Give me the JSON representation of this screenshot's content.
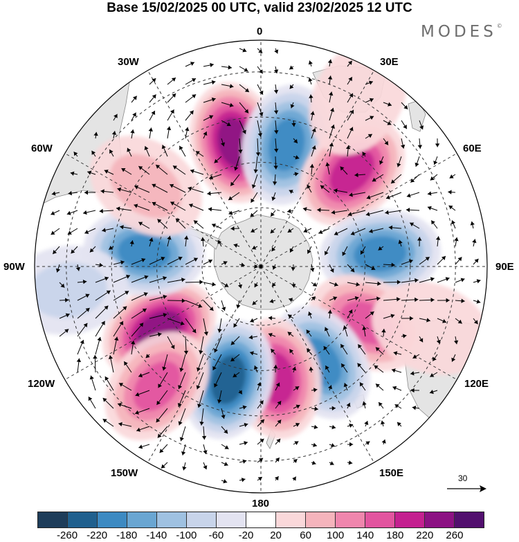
{
  "title": "Base 15/02/2025 00 UTC, valid 23/02/2025 12 UTC",
  "brand": "MODES",
  "brand_mark": "©",
  "longitude_labels": {
    "top": "0",
    "e30": "30E",
    "e60": "60E",
    "e90": "90E",
    "e120": "120E",
    "e150": "150E",
    "bottom": "180",
    "w150": "150W",
    "w120": "120W",
    "w90": "90W",
    "w60": "60W",
    "w30": "30W"
  },
  "wind_reference": {
    "value": "30"
  },
  "colorbar": {
    "colors": [
      "#1e3d5a",
      "#20608e",
      "#3d8ac2",
      "#6aa6d2",
      "#9fc1e1",
      "#c8d4ea",
      "#e3e3f1",
      "#ffffff",
      "#fad8da",
      "#f5b4bc",
      "#ef86ad",
      "#e2559f",
      "#c42190",
      "#8c1283",
      "#52106e"
    ],
    "tick_labels": [
      "-260",
      "-220",
      "-180",
      "-140",
      "-100",
      "-60",
      "-20",
      "20",
      "60",
      "100",
      "140",
      "180",
      "220",
      "260"
    ]
  },
  "colors": {
    "land": "#e4e4e4",
    "coast": "#8a8a8a",
    "grid": "#333333"
  },
  "anomaly_field": [
    {
      "lon": -12,
      "r": 0.56,
      "value": 240
    },
    {
      "lon": 12,
      "r": 0.55,
      "value": -200
    },
    {
      "lon": 44,
      "r": 0.58,
      "value": 180
    },
    {
      "lon": 84,
      "r": 0.53,
      "value": -200
    },
    {
      "lon": 118,
      "r": 0.53,
      "value": 170
    },
    {
      "lon": 148,
      "r": 0.5,
      "value": -180
    },
    {
      "lon": 172,
      "r": 0.5,
      "value": 180
    },
    {
      "lon": -164,
      "r": 0.52,
      "value": -250
    },
    {
      "lon": -122,
      "r": 0.53,
      "value": 240
    },
    {
      "lon": -83,
      "r": 0.52,
      "value": -180
    },
    {
      "lon": -139,
      "r": 0.7,
      "value": 140
    },
    {
      "lon": -97,
      "r": 0.86,
      "value": -80
    },
    {
      "lon": -55,
      "r": 0.62,
      "value": 60
    },
    {
      "lon": 30,
      "r": 0.86,
      "value": 40
    },
    {
      "lon": 110,
      "r": 0.8,
      "value": 40
    }
  ]
}
